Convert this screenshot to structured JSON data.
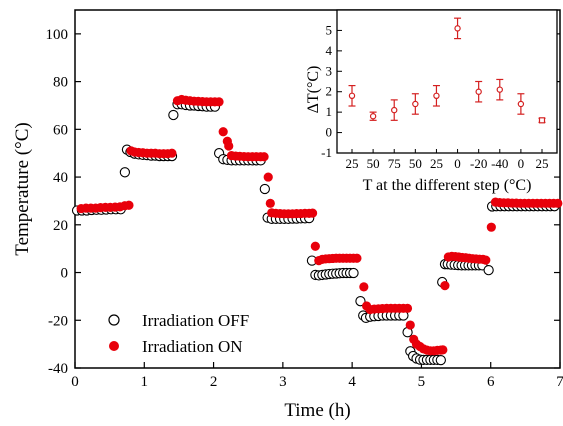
{
  "chart_data": [
    {
      "type": "scatter",
      "xlabel": "Time (h)",
      "ylabel": "Temperature (°C)",
      "xlim": [
        0,
        7
      ],
      "ylim": [
        -40,
        110
      ],
      "xticks": [
        0,
        1,
        2,
        3,
        4,
        5,
        6,
        7
      ],
      "yticks": [
        -40,
        -20,
        0,
        20,
        40,
        60,
        80,
        100
      ],
      "legend": "bottom-left",
      "colors": {
        "off": "#000000",
        "on": "#e8000b"
      },
      "series": [
        {
          "name": "Irradiation OFF",
          "marker": "open-circle",
          "color": "#000000",
          "points": [
            [
              0.03,
              26
            ],
            [
              0.1,
              26
            ],
            [
              0.17,
              26
            ],
            [
              0.24,
              26.2
            ],
            [
              0.31,
              26.3
            ],
            [
              0.38,
              26.3
            ],
            [
              0.45,
              26.4
            ],
            [
              0.52,
              26.5
            ],
            [
              0.59,
              26.5
            ],
            [
              0.66,
              26.5
            ],
            [
              0.72,
              42
            ],
            [
              0.75,
              51.5
            ],
            [
              0.8,
              50.5
            ],
            [
              0.86,
              49.8
            ],
            [
              0.92,
              49.5
            ],
            [
              0.98,
              49.3
            ],
            [
              1.04,
              49.2
            ],
            [
              1.1,
              49
            ],
            [
              1.16,
              49
            ],
            [
              1.22,
              48.8
            ],
            [
              1.28,
              48.8
            ],
            [
              1.34,
              48.8
            ],
            [
              1.4,
              48.8
            ],
            [
              1.42,
              66
            ],
            [
              1.48,
              70.5
            ],
            [
              1.54,
              70.5
            ],
            [
              1.6,
              70.2
            ],
            [
              1.66,
              70
            ],
            [
              1.72,
              70
            ],
            [
              1.78,
              69.8
            ],
            [
              1.84,
              69.7
            ],
            [
              1.9,
              69.5
            ],
            [
              1.96,
              69.5
            ],
            [
              2.02,
              69.5
            ],
            [
              2.08,
              50
            ],
            [
              2.14,
              47.5
            ],
            [
              2.2,
              47.2
            ],
            [
              2.26,
              47
            ],
            [
              2.32,
              47
            ],
            [
              2.38,
              47
            ],
            [
              2.44,
              47
            ],
            [
              2.5,
              47
            ],
            [
              2.56,
              47
            ],
            [
              2.62,
              47
            ],
            [
              2.68,
              47
            ],
            [
              2.74,
              35
            ],
            [
              2.78,
              23
            ],
            [
              2.84,
              22.5
            ],
            [
              2.9,
              22.5
            ],
            [
              2.96,
              22.5
            ],
            [
              3.02,
              22.5
            ],
            [
              3.08,
              22.5
            ],
            [
              3.14,
              22.6
            ],
            [
              3.2,
              22.6
            ],
            [
              3.26,
              22.7
            ],
            [
              3.32,
              22.7
            ],
            [
              3.38,
              22.8
            ],
            [
              3.42,
              5
            ],
            [
              3.47,
              -1
            ],
            [
              3.52,
              -1.2
            ],
            [
              3.57,
              -1
            ],
            [
              3.62,
              -0.8
            ],
            [
              3.67,
              -0.6
            ],
            [
              3.72,
              -0.5
            ],
            [
              3.77,
              -0.4
            ],
            [
              3.82,
              -0.3
            ],
            [
              3.87,
              -0.2
            ],
            [
              3.92,
              -0.2
            ],
            [
              3.97,
              -0.2
            ],
            [
              4.02,
              -0.2
            ],
            [
              4.12,
              -12
            ],
            [
              4.16,
              -18
            ],
            [
              4.2,
              -19
            ],
            [
              4.26,
              -18.5
            ],
            [
              4.32,
              -18.3
            ],
            [
              4.38,
              -18.2
            ],
            [
              4.44,
              -18
            ],
            [
              4.5,
              -18
            ],
            [
              4.56,
              -18
            ],
            [
              4.62,
              -18
            ],
            [
              4.68,
              -18
            ],
            [
              4.74,
              -18
            ],
            [
              4.8,
              -25
            ],
            [
              4.84,
              -33
            ],
            [
              4.88,
              -35
            ],
            [
              4.93,
              -36
            ],
            [
              4.98,
              -36.5
            ],
            [
              5.03,
              -36.6
            ],
            [
              5.08,
              -36.6
            ],
            [
              5.13,
              -36.6
            ],
            [
              5.18,
              -36.6
            ],
            [
              5.23,
              -36.6
            ],
            [
              5.28,
              -36.7
            ],
            [
              5.3,
              -4
            ],
            [
              5.34,
              3.5
            ],
            [
              5.38,
              3.5
            ],
            [
              5.43,
              3.3
            ],
            [
              5.48,
              3.2
            ],
            [
              5.53,
              3.1
            ],
            [
              5.58,
              3
            ],
            [
              5.63,
              3
            ],
            [
              5.68,
              3
            ],
            [
              5.73,
              3
            ],
            [
              5.78,
              3
            ],
            [
              5.83,
              3
            ],
            [
              5.88,
              3
            ],
            [
              5.97,
              1
            ],
            [
              6.02,
              27.7
            ],
            [
              6.08,
              27.8
            ],
            [
              6.14,
              27.8
            ],
            [
              6.2,
              27.8
            ],
            [
              6.26,
              27.8
            ],
            [
              6.32,
              27.8
            ],
            [
              6.38,
              27.8
            ],
            [
              6.44,
              27.8
            ],
            [
              6.5,
              27.8
            ],
            [
              6.56,
              27.8
            ],
            [
              6.62,
              27.8
            ],
            [
              6.68,
              27.8
            ],
            [
              6.74,
              27.8
            ],
            [
              6.8,
              27.8
            ],
            [
              6.86,
              27.8
            ],
            [
              6.92,
              27.8
            ]
          ]
        },
        {
          "name": "Irradiation ON",
          "marker": "filled-circle",
          "color": "#e8000b",
          "points": [
            [
              0.06,
              26.8
            ],
            [
              0.13,
              27
            ],
            [
              0.2,
              27
            ],
            [
              0.27,
              27
            ],
            [
              0.34,
              27.2
            ],
            [
              0.41,
              27.3
            ],
            [
              0.48,
              27.3
            ],
            [
              0.55,
              27.4
            ],
            [
              0.62,
              27.5
            ],
            [
              0.69,
              28
            ],
            [
              0.75,
              28.2
            ],
            [
              0.78,
              51
            ],
            [
              0.83,
              50.5
            ],
            [
              0.89,
              50.3
            ],
            [
              0.95,
              50.2
            ],
            [
              1.01,
              50
            ],
            [
              1.07,
              50
            ],
            [
              1.13,
              50
            ],
            [
              1.19,
              49.8
            ],
            [
              1.25,
              49.8
            ],
            [
              1.31,
              49.8
            ],
            [
              1.37,
              50
            ],
            [
              1.45,
              72
            ],
            [
              1.51,
              72.5
            ],
            [
              1.57,
              72.2
            ],
            [
              1.63,
              72
            ],
            [
              1.69,
              71.8
            ],
            [
              1.75,
              71.7
            ],
            [
              1.81,
              71.6
            ],
            [
              1.87,
              71.5
            ],
            [
              1.93,
              71.5
            ],
            [
              1.99,
              71.5
            ],
            [
              2.05,
              71.5
            ],
            [
              2.11,
              59
            ],
            [
              2.17,
              55
            ],
            [
              2.19,
              53
            ],
            [
              2.23,
              49
            ],
            [
              2.29,
              48.8
            ],
            [
              2.35,
              48.7
            ],
            [
              2.41,
              48.6
            ],
            [
              2.47,
              48.5
            ],
            [
              2.53,
              48.5
            ],
            [
              2.59,
              48.5
            ],
            [
              2.65,
              48.5
            ],
            [
              2.7,
              48.5
            ],
            [
              2.76,
              40
            ],
            [
              2.79,
              29
            ],
            [
              2.81,
              25
            ],
            [
              2.87,
              24.8
            ],
            [
              2.93,
              24.7
            ],
            [
              2.99,
              24.6
            ],
            [
              3.05,
              24.6
            ],
            [
              3.11,
              24.6
            ],
            [
              3.17,
              24.7
            ],
            [
              3.23,
              24.7
            ],
            [
              3.29,
              24.8
            ],
            [
              3.35,
              24.8
            ],
            [
              3.4,
              24.9
            ],
            [
              3.44,
              11
            ],
            [
              3.49,
              5
            ],
            [
              3.54,
              5.5
            ],
            [
              3.59,
              5.7
            ],
            [
              3.64,
              5.8
            ],
            [
              3.69,
              5.9
            ],
            [
              3.74,
              6
            ],
            [
              3.79,
              6
            ],
            [
              3.84,
              6
            ],
            [
              3.89,
              6
            ],
            [
              3.94,
              6
            ],
            [
              3.99,
              6
            ],
            [
              4.04,
              6
            ],
            [
              4.14,
              -6
            ],
            [
              4.18,
              -14
            ],
            [
              4.23,
              -15.5
            ],
            [
              4.29,
              -15.3
            ],
            [
              4.35,
              -15.2
            ],
            [
              4.41,
              -15.1
            ],
            [
              4.47,
              -15
            ],
            [
              4.53,
              -15
            ],
            [
              4.59,
              -15
            ],
            [
              4.65,
              -15
            ],
            [
              4.71,
              -15
            ],
            [
              4.77,
              -15
            ],
            [
              4.81,
              -22
            ],
            [
              4.86,
              -28
            ],
            [
              4.9,
              -30
            ],
            [
              4.95,
              -31
            ],
            [
              5.0,
              -32
            ],
            [
              5.05,
              -32.5
            ],
            [
              5.1,
              -32.8
            ],
            [
              5.15,
              -32.8
            ],
            [
              5.2,
              -32.6
            ],
            [
              5.25,
              -32.5
            ],
            [
              5.28,
              -32.4
            ],
            [
              5.31,
              -5.5
            ],
            [
              5.36,
              6.5
            ],
            [
              5.41,
              6.8
            ],
            [
              5.46,
              6.7
            ],
            [
              5.51,
              6.5
            ],
            [
              5.56,
              6.3
            ],
            [
              5.61,
              6.2
            ],
            [
              5.66,
              6
            ],
            [
              5.71,
              5.8
            ],
            [
              5.76,
              5.7
            ],
            [
              5.81,
              5.6
            ],
            [
              5.86,
              5.5
            ],
            [
              5.9,
              5.2
            ],
            [
              5.98,
              19
            ],
            [
              6.04,
              29.5
            ],
            [
              6.1,
              29.3
            ],
            [
              6.16,
              29.2
            ],
            [
              6.22,
              29.2
            ],
            [
              6.28,
              29.1
            ],
            [
              6.34,
              29.1
            ],
            [
              6.4,
              29
            ],
            [
              6.46,
              29
            ],
            [
              6.52,
              29
            ],
            [
              6.58,
              29
            ],
            [
              6.64,
              29
            ],
            [
              6.7,
              29
            ],
            [
              6.76,
              29
            ],
            [
              6.82,
              29
            ],
            [
              6.88,
              29
            ],
            [
              6.94,
              29
            ]
          ]
        }
      ]
    },
    {
      "type": "errorbar",
      "xlabel": "T at the different step (°C)",
      "ylabel": "ΔT(°C)",
      "ylim": [
        -1,
        6
      ],
      "yticks": [
        -1,
        0,
        1,
        2,
        3,
        4,
        5
      ],
      "categories": [
        "25",
        "50",
        "75",
        "50",
        "25",
        "0",
        "-20",
        "-40",
        "0",
        "25"
      ],
      "color": "#d42020",
      "values": [
        1.8,
        0.8,
        1.1,
        1.4,
        1.8,
        5.1,
        2.0,
        2.1,
        1.4,
        0.6
      ],
      "errors": [
        0.5,
        0.2,
        0.5,
        0.5,
        0.5,
        0.5,
        0.5,
        0.5,
        0.5,
        0.1
      ]
    }
  ]
}
